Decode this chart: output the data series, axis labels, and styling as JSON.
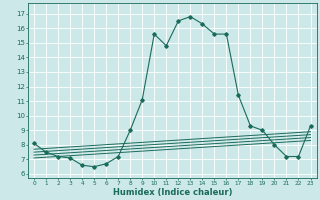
{
  "xlabel": "Humidex (Indice chaleur)",
  "bg_color": "#cce8e8",
  "grid_color": "#ffffff",
  "line_color": "#1a6b5a",
  "xlim": [
    -0.5,
    23.5
  ],
  "ylim": [
    5.7,
    17.7
  ],
  "xticks": [
    0,
    1,
    2,
    3,
    4,
    5,
    6,
    7,
    8,
    9,
    10,
    11,
    12,
    13,
    14,
    15,
    16,
    17,
    18,
    19,
    20,
    21,
    22,
    23
  ],
  "yticks": [
    6,
    7,
    8,
    9,
    10,
    11,
    12,
    13,
    14,
    15,
    16,
    17
  ],
  "main_x": [
    0,
    1,
    2,
    3,
    4,
    5,
    6,
    7,
    8,
    9,
    10,
    11,
    12,
    13,
    14,
    15,
    16,
    17,
    18,
    19,
    20,
    21,
    22,
    23
  ],
  "main_y": [
    8.1,
    7.5,
    7.2,
    7.1,
    6.6,
    6.5,
    6.7,
    7.2,
    9.0,
    11.1,
    15.6,
    14.8,
    16.5,
    16.8,
    16.3,
    15.6,
    15.6,
    11.4,
    9.3,
    9.0,
    8.0,
    7.2,
    7.2,
    9.3
  ],
  "line2_x": [
    0,
    23
  ],
  "line2_y": [
    7.1,
    8.3
  ],
  "line3_x": [
    0,
    23
  ],
  "line3_y": [
    7.3,
    8.5
  ],
  "line4_x": [
    0,
    23
  ],
  "line4_y": [
    7.5,
    8.7
  ],
  "line5_x": [
    0,
    23
  ],
  "line5_y": [
    7.7,
    8.9
  ],
  "xlabel_fontsize": 6,
  "xtick_fontsize": 4.2,
  "ytick_fontsize": 5.0
}
